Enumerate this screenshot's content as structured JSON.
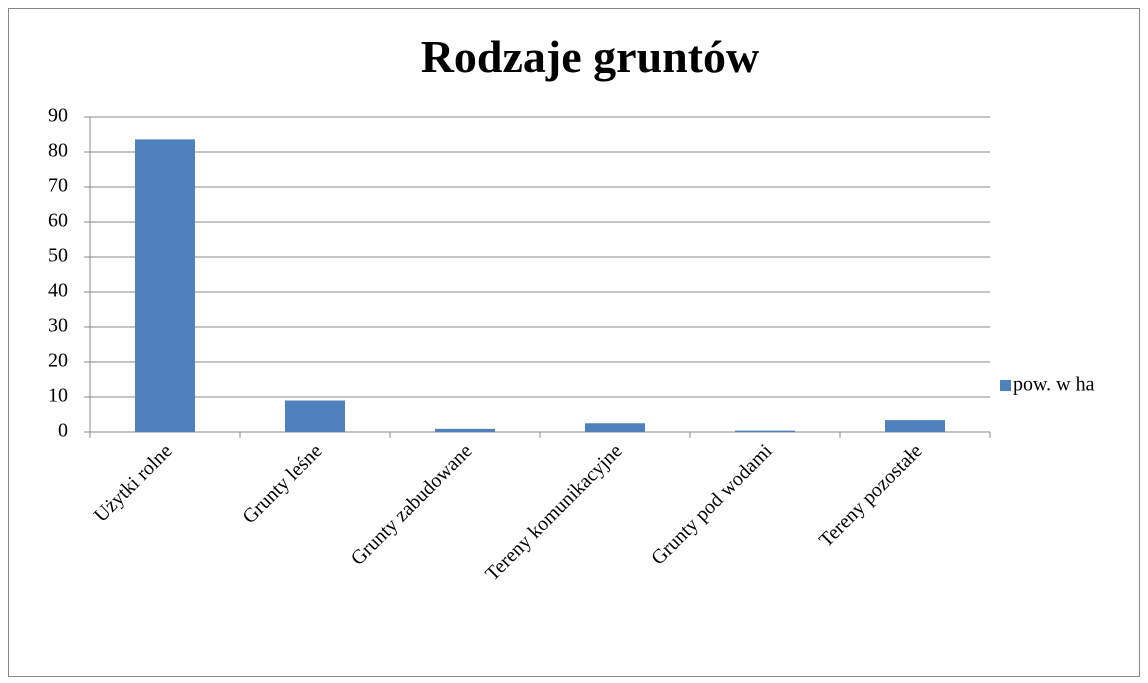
{
  "chart_data": {
    "type": "bar",
    "title": "Rodzaje gruntów",
    "categories": [
      "Użytki rolne",
      "Grunty leśne",
      "Grunty zabudowane",
      "Tereny komunikacyjne",
      "Grunty pod wodami",
      "Tereny pozostałe"
    ],
    "series": [
      {
        "name": "pow. w ha",
        "color": "#4f81bd",
        "values": [
          83.6,
          9,
          0.9,
          2.5,
          0.4,
          3.4
        ]
      }
    ],
    "ylim": [
      0,
      90
    ],
    "yticks": [
      0,
      10,
      20,
      30,
      40,
      50,
      60,
      70,
      80,
      90
    ],
    "grid": true,
    "legend": "right"
  }
}
